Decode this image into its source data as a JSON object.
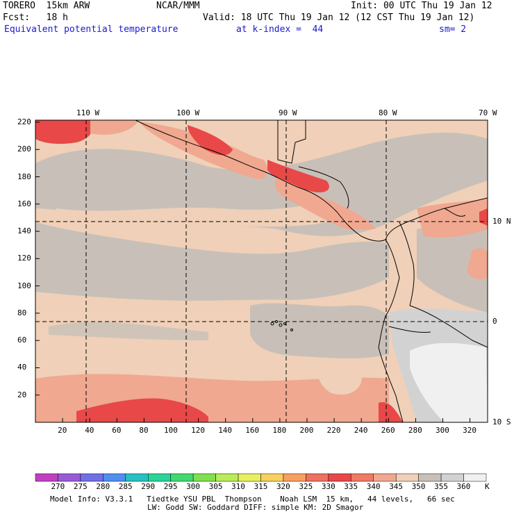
{
  "header": {
    "model": "TORERO  15km ARW",
    "org": "NCAR/MMM",
    "init": "Init: 00 UTC Thu 19 Jan 12",
    "fcst": "Fcst:   18 h",
    "valid": "Valid: 18 UTC Thu 19 Jan 12 (12 CST Thu 19 Jan 12)",
    "field": "Equivalent potential temperature",
    "level": "at k-index =  44",
    "smooth": "sm= 2"
  },
  "map": {
    "top_lon_labels": [
      "110 W",
      "100 W",
      "90 W",
      "80 W",
      "70 W"
    ],
    "right_lat_labels": [
      "10 N",
      "0",
      "10 S"
    ],
    "left_y_ticks": [
      "220",
      "200",
      "180",
      "160",
      "140",
      "120",
      "100",
      "80",
      "60",
      "40",
      "20"
    ],
    "bottom_x_ticks": [
      "20",
      "40",
      "60",
      "80",
      "100",
      "120",
      "140",
      "160",
      "180",
      "200",
      "220",
      "240",
      "260",
      "280",
      "300",
      "320"
    ]
  },
  "colorbar": {
    "labels": [
      "270",
      "275",
      "280",
      "285",
      "290",
      "295",
      "300",
      "305",
      "310",
      "315",
      "320",
      "325",
      "330",
      "335",
      "340",
      "345",
      "350",
      "355",
      "360"
    ],
    "unit": "K",
    "colors": [
      "#c040c0",
      "#9a5ad6",
      "#7070e6",
      "#4f8fef",
      "#28c0c0",
      "#28d49a",
      "#40d870",
      "#80e050",
      "#b8ec58",
      "#e8f060",
      "#f8d060",
      "#f8a060",
      "#f07060",
      "#e84848",
      "#f07a64",
      "#f0a890",
      "#f0d0b8",
      "#c8c0b8",
      "#d2d2d2",
      "#f0f0f0"
    ]
  },
  "footer": {
    "line1": "Model Info: V3.3.1   Tiedtke YSU PBL  Thompson    Noah LSM  15 km,   44 levels,   66 sec",
    "line2": "LW: Godd SW: Goddard DIFF: simple KM: 2D Smagor"
  }
}
